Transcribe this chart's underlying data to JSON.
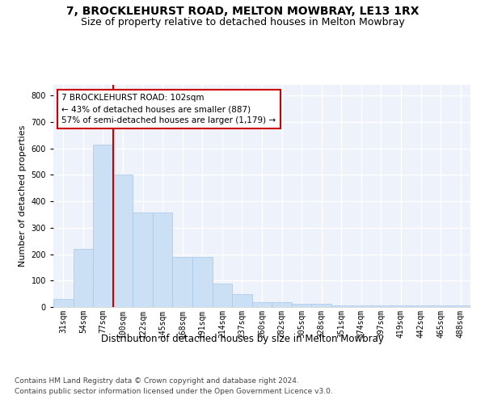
{
  "title": "7, BROCKLEHURST ROAD, MELTON MOWBRAY, LE13 1RX",
  "subtitle": "Size of property relative to detached houses in Melton Mowbray",
  "xlabel": "Distribution of detached houses by size in Melton Mowbray",
  "ylabel": "Number of detached properties",
  "categories": [
    "31sqm",
    "54sqm",
    "77sqm",
    "100sqm",
    "122sqm",
    "145sqm",
    "168sqm",
    "191sqm",
    "214sqm",
    "237sqm",
    "260sqm",
    "282sqm",
    "305sqm",
    "328sqm",
    "351sqm",
    "374sqm",
    "397sqm",
    "419sqm",
    "442sqm",
    "465sqm",
    "488sqm"
  ],
  "values": [
    30,
    220,
    615,
    500,
    357,
    357,
    188,
    188,
    90,
    50,
    18,
    18,
    13,
    13,
    7,
    7,
    7,
    7,
    7,
    7,
    7
  ],
  "bar_color": "#cce0f5",
  "bar_edge_color": "#a8c8e8",
  "vline_color": "#cc0000",
  "annotation_text": "7 BROCKLEHURST ROAD: 102sqm\n← 43% of detached houses are smaller (887)\n57% of semi-detached houses are larger (1,179) →",
  "annotation_box_color": "#ffffff",
  "annotation_box_edge": "#cc0000",
  "ylim": [
    0,
    840
  ],
  "yticks": [
    0,
    100,
    200,
    300,
    400,
    500,
    600,
    700,
    800
  ],
  "background_color": "#eef2fa",
  "grid_color": "#ffffff",
  "footer_line1": "Contains HM Land Registry data © Crown copyright and database right 2024.",
  "footer_line2": "Contains public sector information licensed under the Open Government Licence v3.0.",
  "title_fontsize": 10,
  "subtitle_fontsize": 9,
  "xlabel_fontsize": 8.5,
  "ylabel_fontsize": 8,
  "tick_fontsize": 7,
  "footer_fontsize": 6.5
}
